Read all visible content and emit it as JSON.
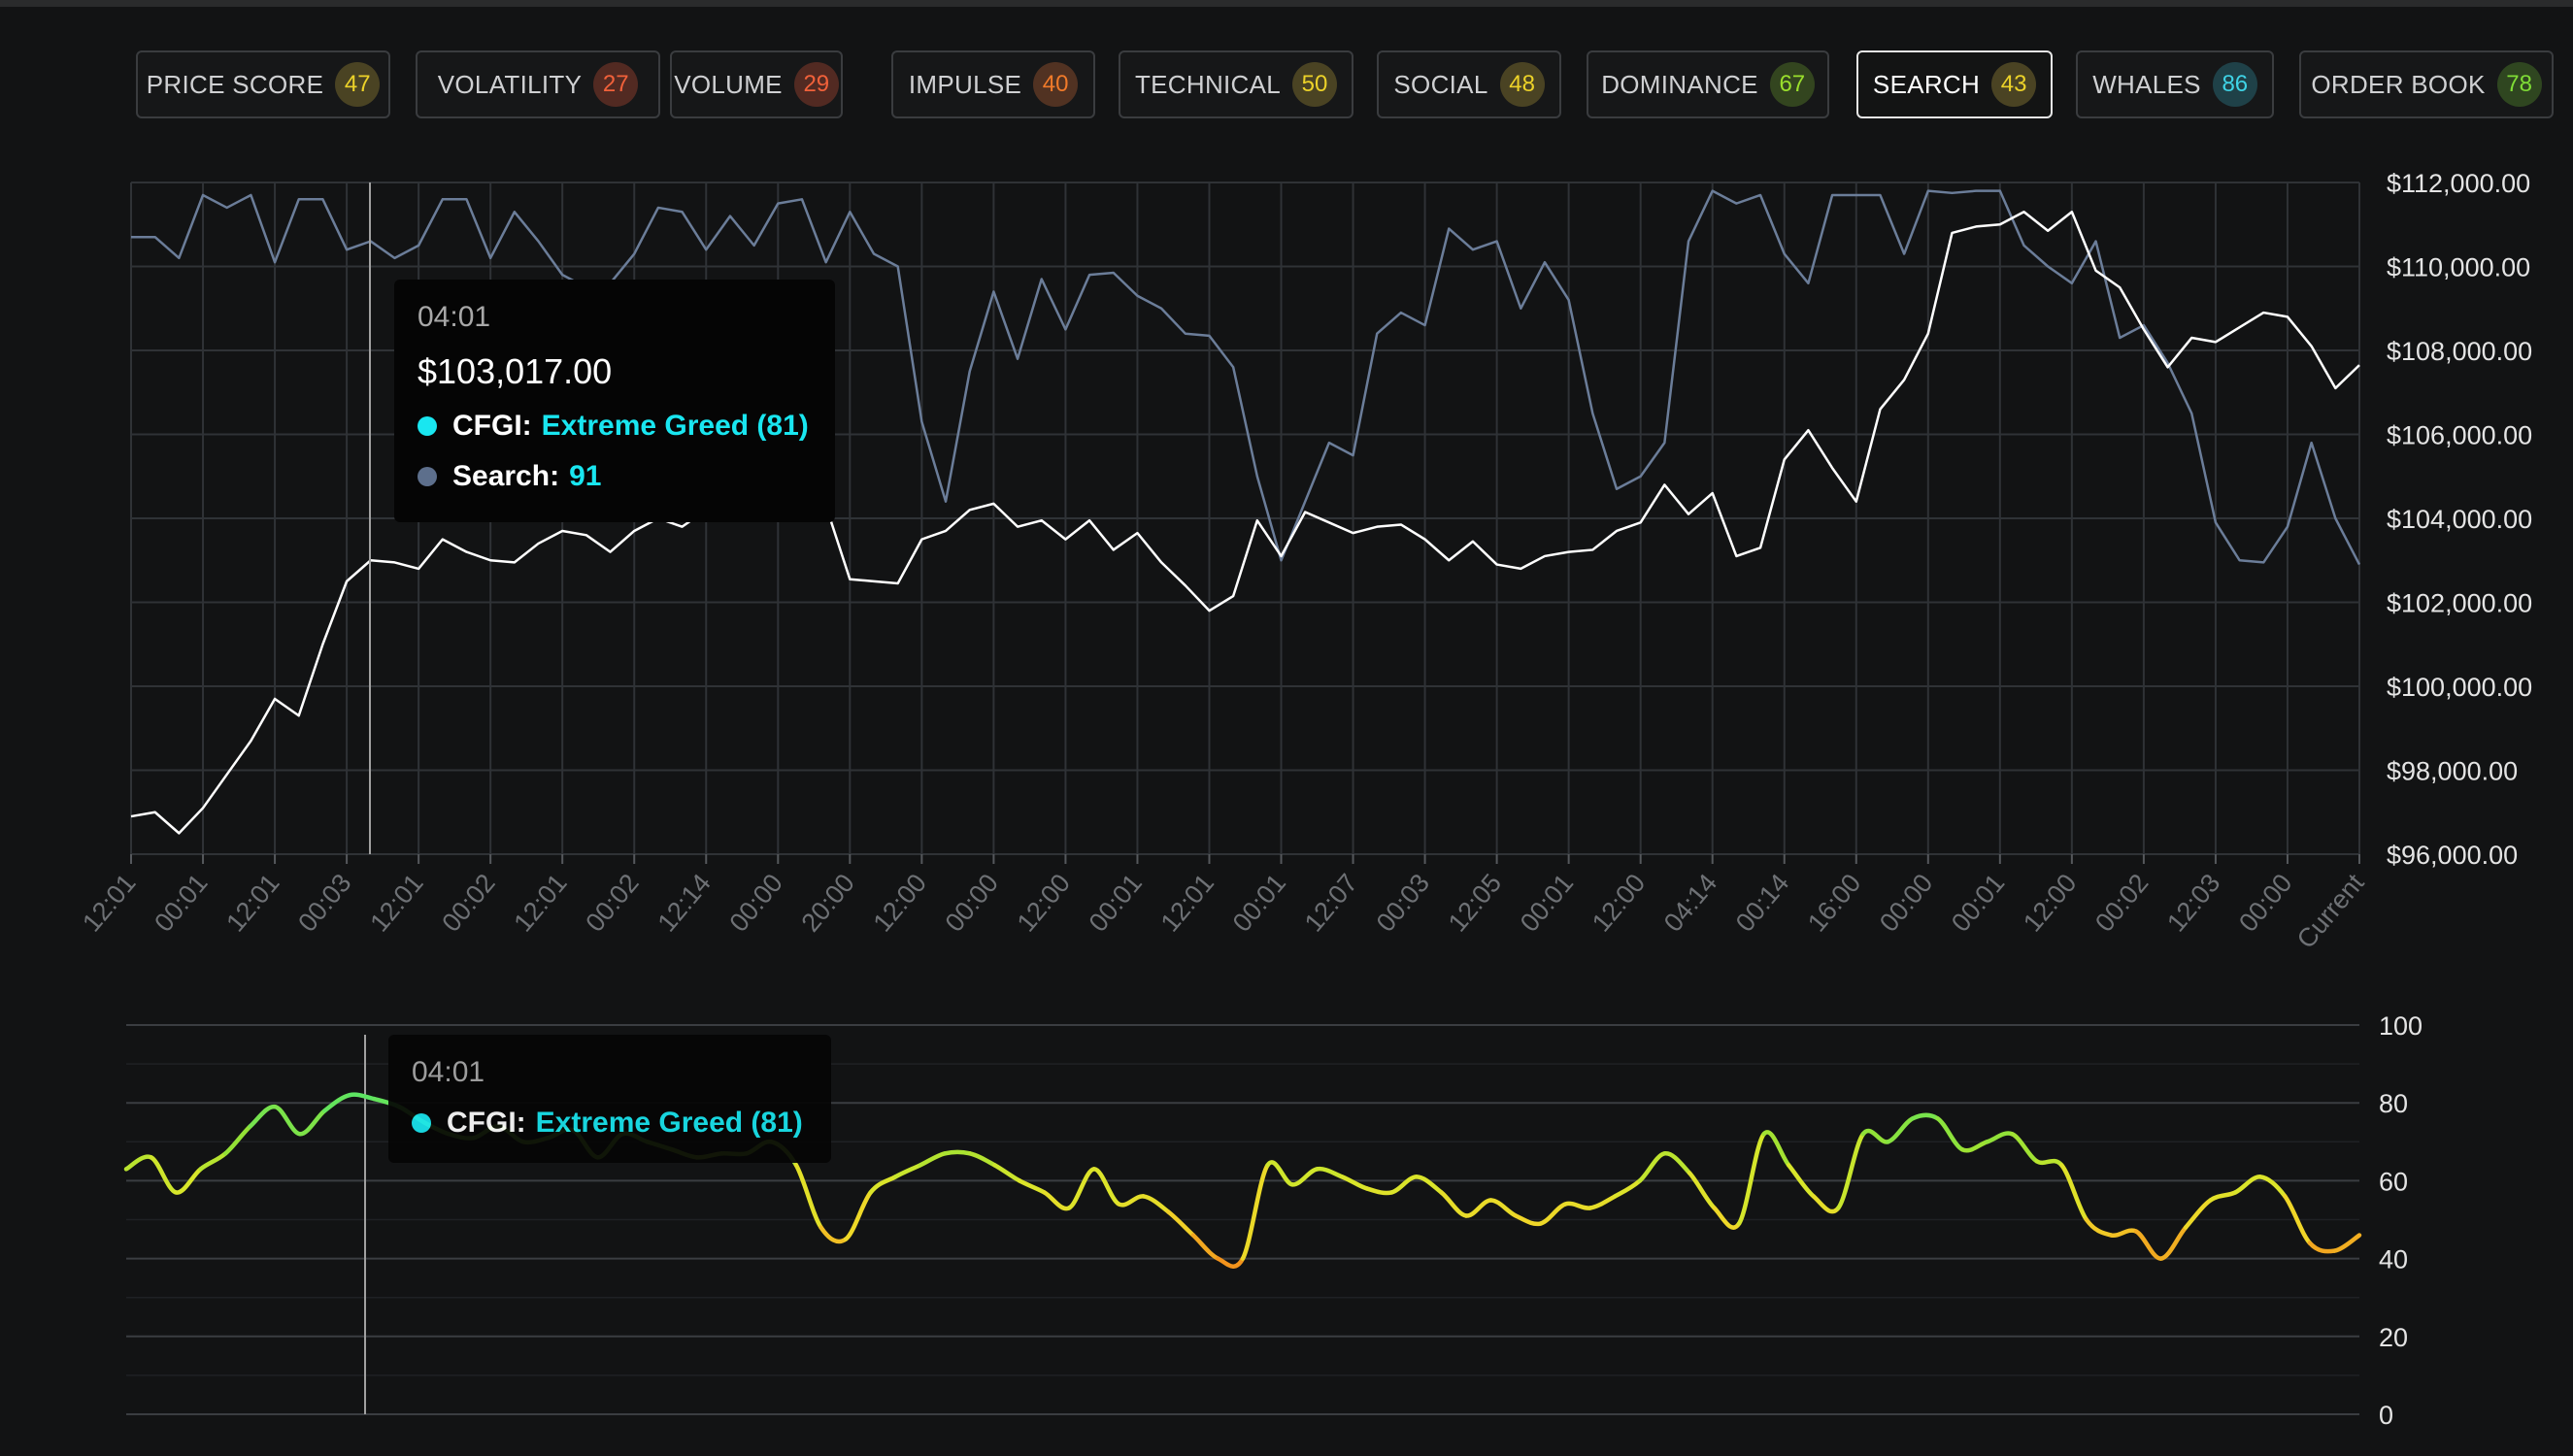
{
  "tabs": [
    {
      "label": "PRICE SCORE",
      "value": "47",
      "color": "#ecd229",
      "bg": "#4a4323"
    },
    {
      "label": "VOLATILITY",
      "value": "27",
      "color": "#f0613a",
      "bg": "#522a22"
    },
    {
      "label": "VOLUME",
      "value": "29",
      "color": "#f0613a",
      "bg": "#522a22"
    },
    {
      "label": "IMPULSE",
      "value": "40",
      "color": "#f07a2a",
      "bg": "#513222"
    },
    {
      "label": "TECHNICAL",
      "value": "50",
      "color": "#ecd229",
      "bg": "#4a4323"
    },
    {
      "label": "SOCIAL",
      "value": "48",
      "color": "#ecd229",
      "bg": "#4a4323"
    },
    {
      "label": "DOMINANCE",
      "value": "67",
      "color": "#9adf2c",
      "bg": "#33451f"
    },
    {
      "label": "SEARCH",
      "value": "43",
      "color": "#ecd229",
      "bg": "#4a4323",
      "active": true
    },
    {
      "label": "WHALES",
      "value": "86",
      "color": "#3fd3e6",
      "bg": "#1f4148"
    },
    {
      "label": "ORDER BOOK",
      "value": "78",
      "color": "#7fdc36",
      "bg": "#2f4620"
    }
  ],
  "colors": {
    "price_line": "#ffffff",
    "search_line": "#6b7d99",
    "cfgi": "#19e6f0",
    "search_dot": "#5d6f8c"
  },
  "price_tooltip": {
    "time": "04:01",
    "price": "$103,017.00",
    "cfgi_label": "CFGI:",
    "cfgi_value": "Extreme Greed (81)",
    "search_label": "Search:",
    "search_value": "91"
  },
  "cfgi_tooltip": {
    "time": "04:01",
    "cfgi_label": "CFGI:",
    "cfgi_value": "Extreme Greed (81)"
  },
  "chart_data": [
    {
      "type": "line",
      "x_labels": [
        "12:01",
        "00:01",
        "12:01",
        "00:03",
        "12:01",
        "00:02",
        "12:01",
        "00:02",
        "12:14",
        "00:00",
        "20:00",
        "12:00",
        "00:00",
        "12:00",
        "00:01",
        "12:01",
        "00:01",
        "12:07",
        "00:03",
        "12:05",
        "00:01",
        "12:00",
        "04:14",
        "00:14",
        "16:00",
        "00:00",
        "00:01",
        "12:00",
        "00:02",
        "12:03",
        "00:00",
        "Current"
      ],
      "y_ticks": [
        "$96,000.00",
        "$98,000.00",
        "$100,000.00",
        "$102,000.00",
        "$104,000.00",
        "$106,000.00",
        "$108,000.00",
        "$110,000.00",
        "$112,000.00"
      ],
      "ylim": [
        96000,
        112000
      ],
      "grid": true,
      "series": [
        {
          "name": "",
          "role": "price",
          "values": [
            96900,
            97000,
            96500,
            97100,
            97900,
            98700,
            99700,
            99300,
            101000,
            102500,
            103000,
            102950,
            102800,
            103500,
            103200,
            103000,
            102950,
            103400,
            103700,
            103600,
            103200,
            103700,
            104000,
            103800,
            104200,
            104000,
            104100,
            104300,
            104450,
            104300,
            102550,
            102500,
            102450,
            103500,
            103700,
            104200,
            104350,
            103800,
            103950,
            103500,
            103950,
            103250,
            103650,
            102950,
            102400,
            101800,
            102150,
            103950,
            103100,
            104150,
            103900,
            103650,
            103800,
            103850,
            103500,
            103000,
            103450,
            102900,
            102800,
            103100,
            103200,
            103250,
            103700,
            103900,
            104800,
            104100,
            104600,
            103100,
            103300,
            105400,
            106100,
            105200,
            104400,
            106600,
            107300,
            108400,
            110800,
            110950,
            111000,
            111300,
            110850,
            111300,
            109900,
            109500,
            108500,
            107600,
            108300,
            108200,
            108550,
            108900,
            108800,
            108100,
            107100,
            107650
          ]
        },
        {
          "name": "Search",
          "role": "search_interest",
          "values": [
            110700,
            110700,
            110200,
            111700,
            111400,
            111700,
            110100,
            111600,
            111600,
            110400,
            110600,
            110200,
            110500,
            111600,
            111600,
            110200,
            111300,
            110600,
            109800,
            109500,
            109600,
            110300,
            111400,
            111300,
            110400,
            111200,
            110500,
            111500,
            111600,
            110100,
            111300,
            110300,
            110000,
            106300,
            104400,
            107500,
            109400,
            107800,
            109700,
            108500,
            109800,
            109850,
            109300,
            109000,
            108400,
            108350,
            107600,
            105000,
            103000,
            104400,
            105800,
            105500,
            108400,
            108900,
            108600,
            110900,
            110400,
            110600,
            109000,
            110100,
            109200,
            106500,
            104700,
            105000,
            105800,
            110600,
            111800,
            111500,
            111700,
            110300,
            109600,
            111700,
            111700,
            111700,
            110300,
            111800,
            111750,
            111800,
            111800,
            110500,
            110000,
            109600,
            110600,
            108300,
            108600,
            107700,
            106500,
            103900,
            103000,
            102950,
            103800,
            105800,
            104000,
            102900
          ]
        }
      ]
    },
    {
      "type": "line",
      "y_ticks": [
        "0",
        "20",
        "40",
        "60",
        "80",
        "100"
      ],
      "ylim": [
        0,
        100
      ],
      "grid": true,
      "series": [
        {
          "name": "CFGI",
          "values": [
            63,
            66,
            57,
            63,
            67,
            74,
            79,
            72,
            78,
            82,
            81,
            79,
            75,
            72,
            71,
            74,
            70,
            71,
            73,
            66,
            72,
            70,
            68,
            66,
            67,
            67,
            70,
            64,
            48,
            45,
            57,
            61,
            64,
            67,
            67,
            64,
            60,
            57,
            53,
            63,
            54,
            56,
            52,
            46,
            40,
            40,
            64,
            59,
            63,
            61,
            58,
            57,
            61,
            57,
            51,
            55,
            51,
            49,
            54,
            53,
            56,
            60,
            67,
            62,
            53,
            49,
            72,
            64,
            56,
            53,
            72,
            70,
            76,
            76,
            68,
            70,
            72,
            65,
            64,
            50,
            46,
            47,
            40,
            48,
            55,
            57,
            61,
            56,
            44,
            42,
            46
          ]
        }
      ]
    }
  ]
}
